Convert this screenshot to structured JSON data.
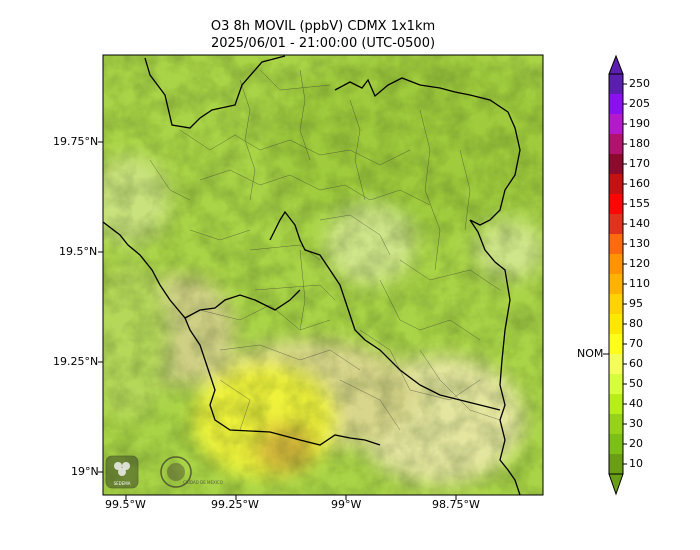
{
  "title": {
    "line1": "O3 8h MOVIL (ppbV) CDMX 1x1km",
    "line2": "2025/06/01 - 21:00:00 (UTC-0500)"
  },
  "map": {
    "lon_ticks": [
      "99.5°W",
      "99.25°W",
      "99°W",
      "98.75°W"
    ],
    "lat_ticks": [
      "19.75°N",
      "19.5°N",
      "19.25°N",
      "19°N"
    ]
  },
  "colorbar": {
    "levels": [
      "250",
      "205",
      "190",
      "180",
      "170",
      "160",
      "155",
      "140",
      "130",
      "120",
      "110",
      "95",
      "80",
      "70",
      "60",
      "50",
      "40",
      "30",
      "20",
      "10"
    ],
    "colors": [
      "#5b1faf",
      "#8b10f0",
      "#b41acb",
      "#b0126e",
      "#8b0a2e",
      "#c41111",
      "#ff0505",
      "#e0321c",
      "#ff6a0f",
      "#ff9400",
      "#ffb300",
      "#ffd200",
      "#ffe800",
      "#ffff1a",
      "#f4ff5a",
      "#d8ff3c",
      "#b8ee18",
      "#97d21a",
      "#7cbf16",
      "#6a9e14"
    ],
    "nom_label": "NOM",
    "nom_value": 65
  },
  "logos": [
    "sedema-logo",
    "gobierno-cdmx-logo"
  ],
  "logo_text": [
    "SEDEMA",
    "CIUDAD DE MÉXICO"
  ]
}
